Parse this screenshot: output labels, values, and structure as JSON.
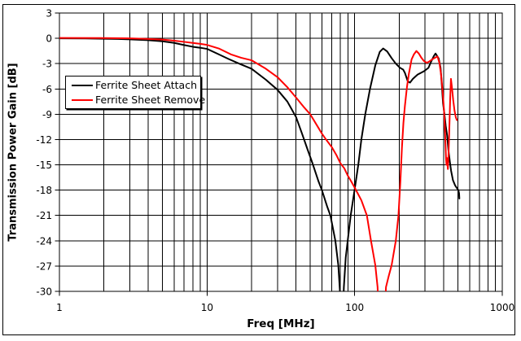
{
  "chart_data": {
    "type": "line",
    "title": "",
    "x_axis": {
      "label": "Freq [MHz]",
      "scale": "log",
      "min": 1,
      "max": 1000,
      "ticks": [
        1,
        10,
        100,
        1000
      ],
      "minor_gridlines": true
    },
    "y_axis": {
      "label": "Transmission Power Gain [dB]",
      "scale": "linear",
      "min": -30,
      "max": 3,
      "tick_step": 3,
      "ticks": [
        3,
        0,
        -3,
        -6,
        -9,
        -12,
        -15,
        -18,
        -21,
        -24,
        -27,
        -30
      ]
    },
    "legend": {
      "position": "upper-left-inside",
      "border": true
    },
    "grid": true,
    "series": [
      {
        "name": "Ferrite Sheet Attach",
        "color": "#000000",
        "points": [
          [
            1,
            0
          ],
          [
            1.5,
            -0.02
          ],
          [
            2,
            -0.05
          ],
          [
            2.5,
            -0.08
          ],
          [
            3,
            -0.12
          ],
          [
            4,
            -0.22
          ],
          [
            5,
            -0.35
          ],
          [
            6,
            -0.55
          ],
          [
            7,
            -0.8
          ],
          [
            8,
            -1.0
          ],
          [
            9,
            -1.12
          ],
          [
            10,
            -1.25
          ],
          [
            12,
            -1.9
          ],
          [
            14,
            -2.45
          ],
          [
            17,
            -3.1
          ],
          [
            20,
            -3.6
          ],
          [
            25,
            -4.9
          ],
          [
            30,
            -6.1
          ],
          [
            35,
            -7.5
          ],
          [
            40,
            -9.3
          ],
          [
            44,
            -11.3
          ],
          [
            48,
            -13.2
          ],
          [
            52,
            -14.9
          ],
          [
            57,
            -17.0
          ],
          [
            60,
            -18.0
          ],
          [
            65,
            -19.9
          ],
          [
            68.5,
            -21
          ],
          [
            74,
            -24
          ],
          [
            77.5,
            -26.9
          ],
          [
            79.5,
            -30
          ],
          [
            80,
            -32
          ],
          [
            83.5,
            -32
          ],
          [
            84.5,
            -29.5
          ],
          [
            87,
            -26
          ],
          [
            90,
            -23.8
          ],
          [
            94,
            -21
          ],
          [
            100,
            -17.9
          ],
          [
            106,
            -14.9
          ],
          [
            111,
            -12
          ],
          [
            118,
            -9
          ],
          [
            127,
            -6
          ],
          [
            138,
            -3.2
          ],
          [
            148,
            -1.6
          ],
          [
            156,
            -1.2
          ],
          [
            166,
            -1.55
          ],
          [
            178,
            -2.35
          ],
          [
            190,
            -3.0
          ],
          [
            203,
            -3.5
          ],
          [
            213,
            -3.7
          ],
          [
            219,
            -4.1
          ],
          [
            229,
            -5.1
          ],
          [
            237,
            -5.25
          ],
          [
            248,
            -4.8
          ],
          [
            267,
            -4.3
          ],
          [
            295,
            -3.9
          ],
          [
            316,
            -3.5
          ],
          [
            329,
            -2.8
          ],
          [
            344,
            -2.1
          ],
          [
            353,
            -1.8
          ],
          [
            362,
            -2.1
          ],
          [
            371,
            -2.4
          ],
          [
            382,
            -3.5
          ],
          [
            390,
            -5.7
          ],
          [
            397,
            -7.7
          ],
          [
            405,
            -8.9
          ],
          [
            414,
            -10.4
          ],
          [
            423,
            -11.5
          ],
          [
            432,
            -13.3
          ],
          [
            442,
            -14.7
          ],
          [
            450,
            -15.7
          ],
          [
            463,
            -16.8
          ],
          [
            478,
            -17.4
          ],
          [
            490,
            -17.7
          ],
          [
            500,
            -17.9
          ],
          [
            506,
            -18.1
          ],
          [
            510,
            -18.4
          ],
          [
            512,
            -19.0
          ]
        ]
      },
      {
        "name": "Ferrite Sheet Remove",
        "color": "#ff0000",
        "points": [
          [
            1,
            0.05
          ],
          [
            2,
            0.03
          ],
          [
            3,
            0
          ],
          [
            4,
            -0.08
          ],
          [
            5,
            -0.15
          ],
          [
            6,
            -0.28
          ],
          [
            7,
            -0.42
          ],
          [
            8,
            -0.55
          ],
          [
            9,
            -0.65
          ],
          [
            10,
            -0.78
          ],
          [
            12,
            -1.2
          ],
          [
            14.5,
            -1.9
          ],
          [
            17,
            -2.3
          ],
          [
            20,
            -2.6
          ],
          [
            25,
            -3.6
          ],
          [
            30,
            -4.6
          ],
          [
            35,
            -5.8
          ],
          [
            40,
            -7.0
          ],
          [
            45,
            -8.1
          ],
          [
            50,
            -9.0
          ],
          [
            55,
            -10.2
          ],
          [
            60,
            -11.3
          ],
          [
            64,
            -12.0
          ],
          [
            70,
            -12.9
          ],
          [
            75,
            -13.8
          ],
          [
            80,
            -14.8
          ],
          [
            85,
            -15.4
          ],
          [
            90,
            -16.3
          ],
          [
            95,
            -17.0
          ],
          [
            100,
            -17.7
          ],
          [
            105,
            -18.4
          ],
          [
            111,
            -19.2
          ],
          [
            121,
            -21
          ],
          [
            129,
            -24
          ],
          [
            138,
            -26.9
          ],
          [
            143,
            -29.5
          ],
          [
            144.5,
            -32
          ],
          [
            160.5,
            -32
          ],
          [
            163,
            -29.5
          ],
          [
            170,
            -28.2
          ],
          [
            178,
            -26.9
          ],
          [
            190,
            -24
          ],
          [
            198,
            -21
          ],
          [
            204,
            -17
          ],
          [
            209,
            -13
          ],
          [
            214,
            -10
          ],
          [
            219,
            -8
          ],
          [
            226,
            -5.8
          ],
          [
            233,
            -4.2
          ],
          [
            243,
            -2.5
          ],
          [
            252,
            -1.9
          ],
          [
            262,
            -1.5
          ],
          [
            272,
            -1.8
          ],
          [
            283,
            -2.3
          ],
          [
            295,
            -2.7
          ],
          [
            308,
            -2.9
          ],
          [
            320,
            -2.75
          ],
          [
            335,
            -2.5
          ],
          [
            350,
            -2.3
          ],
          [
            364,
            -2.15
          ],
          [
            375,
            -2.9
          ],
          [
            385,
            -4.3
          ],
          [
            395,
            -6.4
          ],
          [
            403,
            -8.5
          ],
          [
            410,
            -11.3
          ],
          [
            416,
            -14.3
          ],
          [
            419,
            -15.0
          ],
          [
            422,
            -14.2
          ],
          [
            428,
            -15.5
          ],
          [
            433,
            -13.5
          ],
          [
            439,
            -10
          ],
          [
            444,
            -7
          ],
          [
            449,
            -4.8
          ],
          [
            456,
            -5.8
          ],
          [
            465,
            -7.3
          ],
          [
            475,
            -8.6
          ],
          [
            485,
            -9.4
          ],
          [
            493,
            -9.7
          ]
        ]
      }
    ]
  }
}
